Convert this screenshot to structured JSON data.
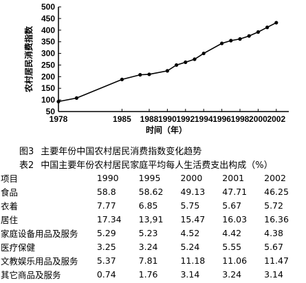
{
  "chart_data": {
    "type": "line",
    "title": "",
    "xlabel": "时间（年）",
    "ylabel": "农村居民消费指数",
    "x_ticks": [
      "1978",
      "1985",
      "1988",
      "1990",
      "1992",
      "1994",
      "1996",
      "1998",
      "2000",
      "2002"
    ],
    "y_ticks": [
      "50",
      "100",
      "150",
      "200",
      "250",
      "300",
      "350",
      "400",
      "450",
      "500"
    ],
    "ylim": [
      50,
      500
    ],
    "grid": false,
    "legend": "none",
    "series": [
      {
        "points": [
          {
            "x": 1978,
            "y": 93
          },
          {
            "x": 1980,
            "y": 108
          },
          {
            "x": 1985,
            "y": 188
          },
          {
            "x": 1987,
            "y": 208
          },
          {
            "x": 1988,
            "y": 210
          },
          {
            "x": 1990,
            "y": 225
          },
          {
            "x": 1991,
            "y": 250
          },
          {
            "x": 1992,
            "y": 262
          },
          {
            "x": 1993,
            "y": 275
          },
          {
            "x": 1994,
            "y": 300
          },
          {
            "x": 1996,
            "y": 343
          },
          {
            "x": 1997,
            "y": 355
          },
          {
            "x": 1998,
            "y": 362
          },
          {
            "x": 1999,
            "y": 375
          },
          {
            "x": 2000,
            "y": 392
          },
          {
            "x": 2001,
            "y": 412
          },
          {
            "x": 2002,
            "y": 432
          }
        ]
      }
    ]
  },
  "figure_caption": {
    "number": "图3",
    "text": "主要年份中国农村居民消费指数变化趋势"
  },
  "table_caption": {
    "number": "表2",
    "text": "中国主要年份农村居民家庭平均每人生活费支出构成（%）"
  },
  "table": {
    "header": [
      "项目",
      "1990",
      "1995",
      "2000",
      "2001",
      "2002"
    ],
    "rows": [
      [
        "食品",
        "58.8",
        "58.62",
        "49.13",
        "47.71",
        "46.25"
      ],
      [
        "衣着",
        "7.77",
        "6.85",
        "5.75",
        "5.67",
        "5.72"
      ],
      [
        "居住",
        "17.34",
        "13,91",
        "15.47",
        "16.03",
        "16.36"
      ],
      [
        "家庭设备用品及服务",
        "5.29",
        "5.23",
        "4.52",
        "4.42",
        "4.38"
      ],
      [
        "医疗保健",
        "3.25",
        "3.24",
        "5.24",
        "5.55",
        "5.67"
      ],
      [
        "文教娱乐用品及服务",
        "5.37",
        "7.81",
        "11.18",
        "11.06",
        "11.47"
      ],
      [
        "其它商品及服务",
        "0.74",
        "1.76",
        "3.14",
        "3.24",
        "3.14"
      ]
    ]
  }
}
